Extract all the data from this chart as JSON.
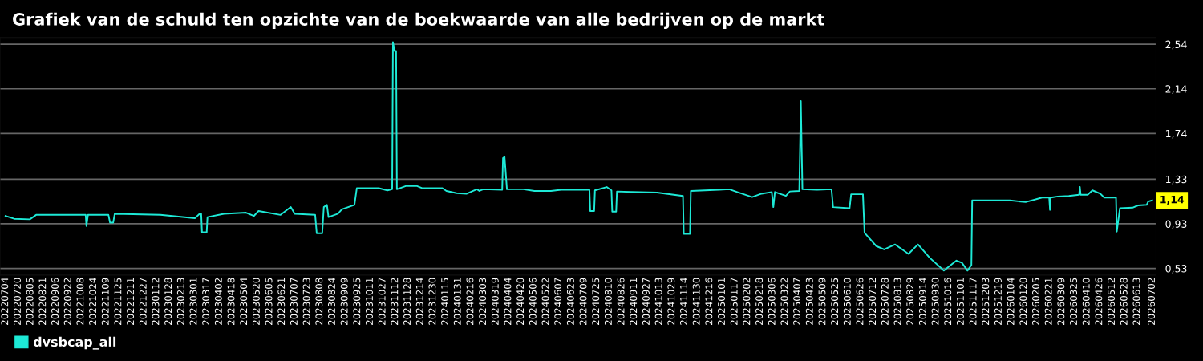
{
  "chart_data": {
    "type": "line",
    "title": "Grafiek van de schuld ten opzichte van de boekwaarde van alle bedrijven op de markt",
    "x": [
      "2022-07-04",
      "2022-07-15",
      "2022-08-04",
      "2022-08-12",
      "2022-10-14",
      "2022-10-15",
      "2022-10-17",
      "2022-11-12",
      "2022-11-14",
      "2022-11-18",
      "2022-11-20",
      "2023-01-17",
      "2023-03-02",
      "2023-03-08",
      "2023-03-10",
      "2023-03-11",
      "2023-03-17",
      "2023-03-18",
      "2023-04-08",
      "2023-05-06",
      "2023-05-16",
      "2023-05-22",
      "2023-06-19",
      "2023-07-02",
      "2023-07-07",
      "2023-08-02",
      "2023-08-04",
      "2023-08-11",
      "2023-08-13",
      "2023-08-17",
      "2023-08-19",
      "2023-08-31",
      "2023-09-05",
      "2023-09-21",
      "2023-09-24",
      "2023-10-22",
      "2023-11-02",
      "2023-11-08",
      "2023-11-09",
      "2023-11-11",
      "2023-11-13",
      "2023-11-14",
      "2023-11-26",
      "2023-12-09",
      "2023-12-16",
      "2024-01-11",
      "2024-01-16",
      "2024-01-29",
      "2024-02-11",
      "2024-02-19",
      "2024-02-24",
      "2024-02-27",
      "2024-03-03",
      "2024-03-27",
      "2024-03-28",
      "2024-03-30",
      "2024-04-02",
      "2024-04-23",
      "2024-05-07",
      "2024-05-28",
      "2024-06-10",
      "2024-07-16",
      "2024-07-17",
      "2024-07-22",
      "2024-07-23",
      "2024-08-07",
      "2024-08-13",
      "2024-08-14",
      "2024-08-19",
      "2024-08-20",
      "2024-09-07",
      "2024-10-10",
      "2024-11-12",
      "2024-11-13",
      "2024-11-21",
      "2024-11-22",
      "2024-12-28",
      "2025-01-10",
      "2025-01-20",
      "2025-02-08",
      "2025-02-20",
      "2025-03-05",
      "2025-03-07",
      "2025-03-09",
      "2025-03-23",
      "2025-03-28",
      "2025-04-09",
      "2025-04-11",
      "2025-04-13",
      "2025-05-02",
      "2025-05-20",
      "2025-05-22",
      "2025-06-12",
      "2025-06-14",
      "2025-06-29",
      "2025-07-01",
      "2025-07-16",
      "2025-07-26",
      "2025-08-09",
      "2025-08-26",
      "2025-09-07",
      "2025-09-22",
      "2025-10-10",
      "2025-10-26",
      "2025-11-02",
      "2025-11-09",
      "2025-11-14",
      "2025-11-15",
      "2026-01-02",
      "2026-01-22",
      "2026-02-12",
      "2026-02-21",
      "2026-02-22",
      "2026-02-23",
      "2026-03-04",
      "2026-03-18",
      "2026-03-31",
      "2026-04-01",
      "2026-04-02",
      "2026-04-11",
      "2026-04-17",
      "2026-04-27",
      "2026-05-02",
      "2026-05-17",
      "2026-05-18",
      "2026-05-22",
      "2026-06-07",
      "2026-06-14",
      "2026-06-25",
      "2026-06-27",
      "2026-07-02"
    ],
    "series": [
      {
        "name": "dvsbcap_all",
        "color": "#1de9d6",
        "values": [
          1.0,
          0.975,
          0.97,
          1.01,
          1.01,
          0.91,
          1.01,
          1.01,
          0.94,
          0.94,
          1.02,
          1.01,
          0.98,
          1.02,
          1.02,
          0.855,
          0.855,
          0.99,
          1.02,
          1.03,
          1.0,
          1.045,
          1.01,
          1.08,
          1.02,
          1.01,
          0.845,
          0.845,
          1.08,
          1.1,
          0.99,
          1.02,
          1.06,
          1.1,
          1.25,
          1.25,
          1.23,
          1.24,
          2.56,
          2.48,
          2.48,
          1.24,
          1.27,
          1.27,
          1.25,
          1.25,
          1.225,
          1.205,
          1.2,
          1.225,
          1.24,
          1.225,
          1.24,
          1.235,
          1.52,
          1.53,
          1.24,
          1.24,
          1.225,
          1.225,
          1.235,
          1.235,
          1.045,
          1.045,
          1.23,
          1.26,
          1.23,
          1.04,
          1.04,
          1.22,
          1.215,
          1.21,
          1.18,
          0.84,
          0.84,
          1.225,
          1.235,
          1.24,
          1.215,
          1.17,
          1.2,
          1.215,
          1.08,
          1.215,
          1.18,
          1.22,
          1.225,
          2.03,
          1.24,
          1.235,
          1.24,
          1.08,
          1.07,
          1.195,
          1.195,
          0.85,
          0.73,
          0.7,
          0.745,
          0.66,
          0.745,
          0.625,
          0.51,
          0.6,
          0.58,
          0.51,
          0.56,
          1.14,
          1.14,
          1.125,
          1.165,
          1.165,
          1.055,
          1.165,
          1.175,
          1.18,
          1.19,
          1.26,
          1.19,
          1.19,
          1.23,
          1.2,
          1.165,
          1.165,
          0.86,
          1.07,
          1.075,
          1.095,
          1.1,
          1.13,
          1.14
        ]
      }
    ],
    "xlim": [
      "2022-06-27",
      "2026-07-07"
    ],
    "xticks": [
      {
        "value": "2022-07-04",
        "label": "20220704"
      },
      {
        "value": "2022-07-20",
        "label": "20220720"
      },
      {
        "value": "2022-08-05",
        "label": "20220805"
      },
      {
        "value": "2022-08-21",
        "label": "20220821"
      },
      {
        "value": "2022-09-06",
        "label": "20220906"
      },
      {
        "value": "2022-09-22",
        "label": "20220922"
      },
      {
        "value": "2022-10-08",
        "label": "20221008"
      },
      {
        "value": "2022-10-24",
        "label": "20221024"
      },
      {
        "value": "2022-11-09",
        "label": "20221109"
      },
      {
        "value": "2022-11-25",
        "label": "20221125"
      },
      {
        "value": "2022-12-11",
        "label": "20221211"
      },
      {
        "value": "2022-12-27",
        "label": "20221227"
      },
      {
        "value": "2023-01-12",
        "label": "20230112"
      },
      {
        "value": "2023-01-28",
        "label": "20230128"
      },
      {
        "value": "2023-02-13",
        "label": "20230213"
      },
      {
        "value": "2023-03-01",
        "label": "20230301"
      },
      {
        "value": "2023-03-17",
        "label": "20230317"
      },
      {
        "value": "2023-04-02",
        "label": "20230402"
      },
      {
        "value": "2023-04-18",
        "label": "20230418"
      },
      {
        "value": "2023-05-04",
        "label": "20230504"
      },
      {
        "value": "2023-05-20",
        "label": "20230520"
      },
      {
        "value": "2023-06-05",
        "label": "20230605"
      },
      {
        "value": "2023-06-21",
        "label": "20230621"
      },
      {
        "value": "2023-07-07",
        "label": "20230707"
      },
      {
        "value": "2023-07-23",
        "label": "20230723"
      },
      {
        "value": "2023-08-08",
        "label": "20230808"
      },
      {
        "value": "2023-08-24",
        "label": "20230824"
      },
      {
        "value": "2023-09-09",
        "label": "20230909"
      },
      {
        "value": "2023-09-25",
        "label": "20230925"
      },
      {
        "value": "2023-10-11",
        "label": "20231011"
      },
      {
        "value": "2023-10-27",
        "label": "20231027"
      },
      {
        "value": "2023-11-12",
        "label": "20231112"
      },
      {
        "value": "2023-11-28",
        "label": "20231128"
      },
      {
        "value": "2023-12-14",
        "label": "20231214"
      },
      {
        "value": "2023-12-30",
        "label": "20231230"
      },
      {
        "value": "2024-01-15",
        "label": "20240115"
      },
      {
        "value": "2024-01-31",
        "label": "20240131"
      },
      {
        "value": "2024-02-16",
        "label": "20240216"
      },
      {
        "value": "2024-03-03",
        "label": "20240303"
      },
      {
        "value": "2024-03-19",
        "label": "20240319"
      },
      {
        "value": "2024-04-04",
        "label": "20240404"
      },
      {
        "value": "2024-04-20",
        "label": "20240420"
      },
      {
        "value": "2024-05-06",
        "label": "20240506"
      },
      {
        "value": "2024-05-22",
        "label": "20240522"
      },
      {
        "value": "2024-06-07",
        "label": "20240607"
      },
      {
        "value": "2024-06-23",
        "label": "20240623"
      },
      {
        "value": "2024-07-09",
        "label": "20240709"
      },
      {
        "value": "2024-07-25",
        "label": "20240725"
      },
      {
        "value": "2024-08-10",
        "label": "20240810"
      },
      {
        "value": "2024-08-26",
        "label": "20240826"
      },
      {
        "value": "2024-09-11",
        "label": "20240911"
      },
      {
        "value": "2024-09-27",
        "label": "20240927"
      },
      {
        "value": "2024-10-13",
        "label": "20241013"
      },
      {
        "value": "2024-10-29",
        "label": "20241029"
      },
      {
        "value": "2024-11-14",
        "label": "20241114"
      },
      {
        "value": "2024-11-30",
        "label": "20241130"
      },
      {
        "value": "2024-12-16",
        "label": "20241216"
      },
      {
        "value": "2025-01-01",
        "label": "20250101"
      },
      {
        "value": "2025-01-17",
        "label": "20250117"
      },
      {
        "value": "2025-02-02",
        "label": "20250202"
      },
      {
        "value": "2025-02-18",
        "label": "20250218"
      },
      {
        "value": "2025-03-06",
        "label": "20250306"
      },
      {
        "value": "2025-03-22",
        "label": "20250322"
      },
      {
        "value": "2025-04-07",
        "label": "20250407"
      },
      {
        "value": "2025-04-23",
        "label": "20250423"
      },
      {
        "value": "2025-05-09",
        "label": "20250509"
      },
      {
        "value": "2025-05-25",
        "label": "20250525"
      },
      {
        "value": "2025-06-10",
        "label": "20250610"
      },
      {
        "value": "2025-06-26",
        "label": "20250626"
      },
      {
        "value": "2025-07-12",
        "label": "20250712"
      },
      {
        "value": "2025-07-28",
        "label": "20250728"
      },
      {
        "value": "2025-08-13",
        "label": "20250813"
      },
      {
        "value": "2025-08-29",
        "label": "20250829"
      },
      {
        "value": "2025-09-14",
        "label": "20250914"
      },
      {
        "value": "2025-09-30",
        "label": "20250930"
      },
      {
        "value": "2025-10-16",
        "label": "20251016"
      },
      {
        "value": "2025-11-01",
        "label": "20251101"
      },
      {
        "value": "2025-11-17",
        "label": "20251117"
      },
      {
        "value": "2025-12-03",
        "label": "20251203"
      },
      {
        "value": "2025-12-19",
        "label": "20251219"
      },
      {
        "value": "2026-01-04",
        "label": "20260104"
      },
      {
        "value": "2026-01-20",
        "label": "20260120"
      },
      {
        "value": "2026-02-05",
        "label": "20260205"
      },
      {
        "value": "2026-02-21",
        "label": "20260221"
      },
      {
        "value": "2026-03-09",
        "label": "20260309"
      },
      {
        "value": "2026-03-25",
        "label": "20260325"
      },
      {
        "value": "2026-04-10",
        "label": "20260410"
      },
      {
        "value": "2026-04-26",
        "label": "20260426"
      },
      {
        "value": "2026-05-12",
        "label": "20260512"
      },
      {
        "value": "2026-05-28",
        "label": "20260528"
      },
      {
        "value": "2026-06-13",
        "label": "20260613"
      },
      {
        "value": "2026-07-02",
        "label": "20260702"
      }
    ],
    "ylim": [
      0.47,
      2.6
    ],
    "yticks": [
      {
        "value": 0.53,
        "label": "0,53"
      },
      {
        "value": 0.93,
        "label": "0,93"
      },
      {
        "value": 1.33,
        "label": "1,33"
      },
      {
        "value": 1.74,
        "label": "1,74"
      },
      {
        "value": 2.14,
        "label": "2,14"
      },
      {
        "value": 2.54,
        "label": "2,54"
      }
    ],
    "annotations": [
      {
        "text": "1,14",
        "x": "2026-07-02",
        "y": 1.14
      }
    ],
    "grid": "y",
    "legend": "bottom left",
    "marker": "none",
    "line_style": "solid"
  }
}
